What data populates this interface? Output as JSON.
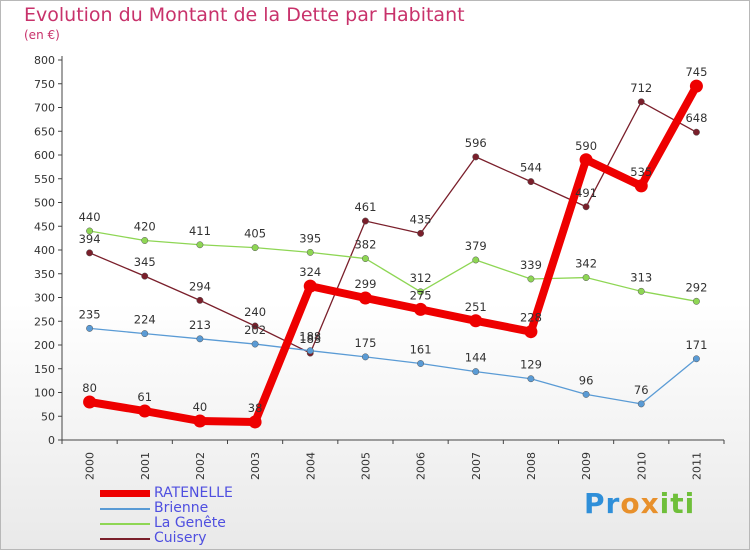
{
  "header": {
    "title": "Evolution du Montant de la Dette par Habitant",
    "subtitle": "(en €)"
  },
  "logo": {
    "letters": [
      "P",
      "r",
      "o",
      "x",
      "i",
      "t",
      "i"
    ],
    "colors": [
      "#2f8fd9",
      "#2f8fd9",
      "#e8902b",
      "#e8902b",
      "#6fbf3a",
      "#6fbf3a",
      "#6fbf3a"
    ]
  },
  "chart_data": {
    "type": "line",
    "x": [
      "2000",
      "2001",
      "2002",
      "2003",
      "2004",
      "2005",
      "2006",
      "2007",
      "2008",
      "2009",
      "2010",
      "2011"
    ],
    "ylim": [
      0,
      800
    ],
    "yticks": [
      0,
      50,
      100,
      150,
      200,
      250,
      300,
      350,
      400,
      450,
      500,
      550,
      600,
      650,
      700,
      750,
      800
    ],
    "grid": false,
    "legend_position": "bottom-left",
    "series": [
      {
        "name": "RATENELLE",
        "color": "#ee0000",
        "values": [
          80,
          61,
          40,
          38,
          324,
          299,
          275,
          251,
          228,
          590,
          535,
          745
        ],
        "labels": [
          "80",
          "61",
          "40",
          "38",
          "324",
          "299",
          "275",
          "251",
          "228",
          "590",
          "535",
          "745"
        ]
      },
      {
        "name": "Brienne",
        "color": "#5a9bd5",
        "values": [
          235,
          224,
          213,
          202,
          188,
          175,
          161,
          144,
          129,
          96,
          76,
          171
        ],
        "labels": [
          "235",
          "224",
          "213",
          "202",
          "188",
          "175",
          "161",
          "144",
          "129",
          "96",
          "76",
          "171"
        ]
      },
      {
        "name": "La Genête",
        "color": "#8ed654",
        "values": [
          440,
          420,
          411,
          405,
          395,
          382,
          312,
          379,
          339,
          342,
          313,
          292
        ],
        "labels": [
          "440",
          "420",
          "411",
          "405",
          "395",
          "382",
          "312",
          "379",
          "339",
          "342",
          "313",
          "292"
        ]
      },
      {
        "name": "Cuisery",
        "color": "#7a1f2b",
        "values": [
          394,
          345,
          294,
          240,
          183,
          461,
          435,
          596,
          544,
          491,
          712,
          648
        ],
        "labels": [
          "394",
          "345",
          "294",
          "240",
          "183",
          "461",
          "435",
          "596",
          "544",
          "491",
          "712",
          "648"
        ]
      }
    ]
  }
}
